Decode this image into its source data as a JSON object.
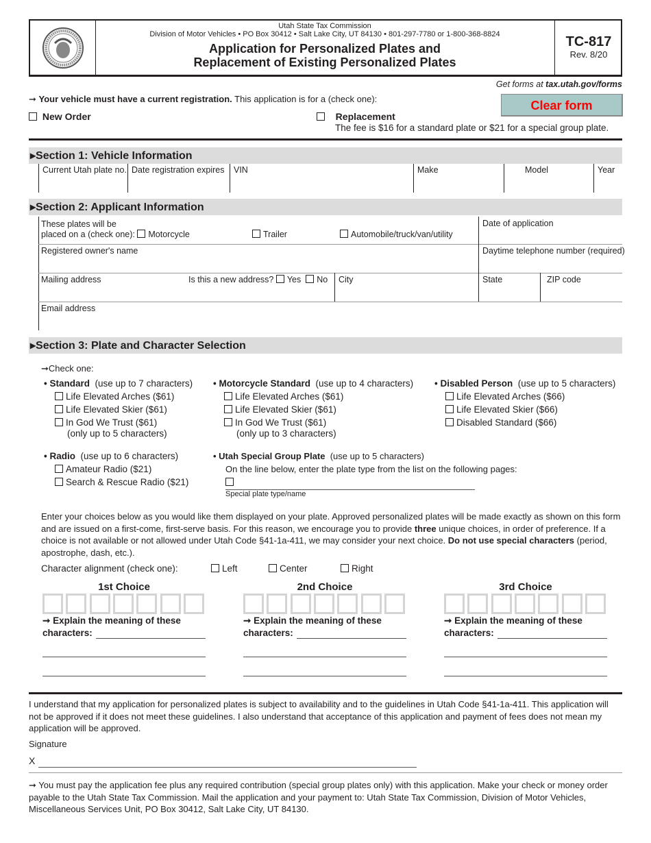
{
  "header": {
    "agency": "Utah State Tax Commission",
    "address": "Division of Motor Vehicles • PO Box 30412 • Salt Lake City, UT 84130 • 801-297-7780 or 1-800-368-8824",
    "title_line1": "Application for Personalized Plates and",
    "title_line2": "Replacement of Existing Personalized Plates",
    "form_no": "TC-817",
    "rev": "Rev. 8/20",
    "seal": "The Great Seal of the State of Utah 1896"
  },
  "get_forms_prefix": "Get forms at ",
  "get_forms_url": "tax.utah.gov/forms",
  "clear_form": "Clear form",
  "clear_form_color": "#ff0000",
  "clear_form_bg": "#a9c8c8",
  "intro": {
    "bold": "Your vehicle must have a current registration.",
    "rest": " This application is for a (check one):",
    "new_order": "New Order",
    "replacement": "Replacement",
    "fee": "The fee is $16 for a standard plate or $21 for a special group plate."
  },
  "section1": {
    "title": "Section 1: Vehicle Information",
    "fields": [
      "Current Utah plate no.",
      "Date registration expires",
      "VIN",
      "Make",
      "Model",
      "Year"
    ]
  },
  "section2": {
    "title": "Section 2: Applicant Information",
    "placed_l1": "These plates will be",
    "placed_l2": "placed on a (check one):",
    "motorcycle": "Motorcycle",
    "trailer": "Trailer",
    "auto": "Automobile/truck/van/utility",
    "date_app": "Date of application",
    "owner": "Registered owner's name",
    "phone": "Daytime telephone number (required)",
    "mailing": "Mailing address",
    "new_addr": "Is this a new address?",
    "yes": "Yes",
    "no": "No",
    "city": "City",
    "state": "State",
    "zip": "ZIP code",
    "email": "Email address"
  },
  "section3": {
    "title": "Section 3: Plate and Character Selection",
    "check_one": "Check one:",
    "standard": {
      "name": "• Standard",
      "note": "(use up to 7 characters)",
      "opts": [
        "Life Elevated Arches ($61)",
        "Life Elevated Skier ($61)",
        "In God We Trust ($61)"
      ],
      "sub": "(only up to 5 characters)"
    },
    "moto": {
      "name": "• Motorcycle Standard",
      "note": "(use up to 4 characters)",
      "opts": [
        "Life Elevated Arches ($61)",
        "Life Elevated Skier ($61)",
        "In God We Trust ($61)"
      ],
      "sub": "(only up to 3 characters)"
    },
    "disabled": {
      "name": "• Disabled Person",
      "note": "(use up to 5 characters)",
      "opts": [
        "Life Elevated Arches ($66)",
        "Life Elevated Skier ($66)",
        "Disabled Standard ($66)"
      ]
    },
    "radio": {
      "name": "• Radio",
      "note": "(use up to 6 characters)",
      "opts": [
        "Amateur Radio ($21)",
        "Search & Rescue Radio ($21)"
      ]
    },
    "special": {
      "name": "• Utah Special Group Plate",
      "note": "(use up to 5 characters)",
      "line": "On the line below, enter the plate type from the list on the following pages:",
      "field": "Special plate type/name"
    },
    "para1": "Enter your choices below as you would like them displayed on your plate. Approved personalized plates will be made exactly as shown on this form and are issued on a first-come, first-serve basis. For this reason, we encourage you to provide ",
    "para1_b": "three",
    "para1_c": " unique choices, in order of preference. If a choice is not available or not allowed under Utah Code §41-1a-411, we may consider your next choice. ",
    "para1_d": "Do not use special characters",
    "para1_e": " (period, apostrophe, dash, etc.).",
    "align": "Character alignment (check one):",
    "left": "Left",
    "center": "Center",
    "right": "Right",
    "choices": [
      "1st Choice",
      "2nd Choice",
      "3rd Choice"
    ],
    "explain_l1": "Explain the meaning of these",
    "explain_l2": "characters:"
  },
  "agreement": "I understand that my application for personalized plates is subject to availability and to the guidelines in Utah Code §41-1a-411. This application will not be approved if it does not meet these guidelines. I also understand that acceptance of this application and payment of fees does not mean my application will be approved.",
  "signature": "Signature",
  "sig_x": "X",
  "payment": "You must pay the application fee plus any required contribution (special group plates only) with this application. Make your check or money order payable to the Utah State Tax Commission.  Mail the application and your payment to: Utah State Tax Commission, Division of Motor Vehicles, Miscellaneous Services Unit, PO Box 30412, Salt Lake City, UT 84130."
}
